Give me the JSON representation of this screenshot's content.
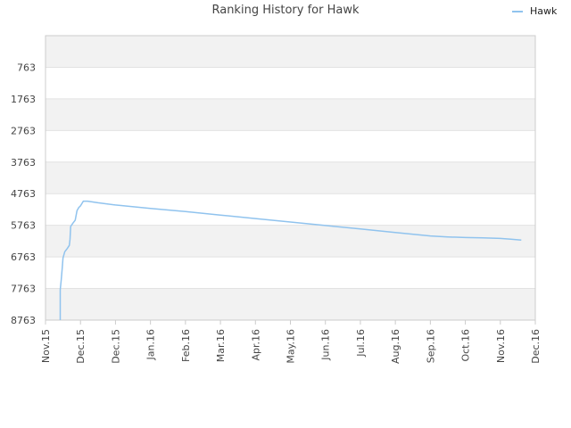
{
  "chart_data": {
    "type": "line",
    "title": "Ranking History for Hawk",
    "xlabel": "",
    "ylabel": "",
    "y_inverted": true,
    "ylim": [
      -237,
      8763
    ],
    "y_ticks": [
      763,
      1763,
      2763,
      3763,
      4763,
      5763,
      6763,
      7763,
      8763
    ],
    "x_ticks": [
      "Nov.15",
      "Dec.15",
      "Dec.15",
      "Jan.16",
      "Feb.16",
      "Mar.16",
      "Apr.16",
      "May.16",
      "Jun.16",
      "Jul.16",
      "Aug.16",
      "Sep.16",
      "Oct.16",
      "Nov.16",
      "Dec.16"
    ],
    "x_tick_positions": [
      0,
      1,
      2,
      3,
      4,
      5,
      6,
      7,
      8,
      9,
      10,
      11,
      12,
      13,
      14
    ],
    "xlim": [
      0,
      14
    ],
    "grid": "horizontal bands",
    "legend_position": "top-right",
    "colors": {
      "line": "#90c3ee",
      "band": "#f2f2f2",
      "grid": "#e2e2e2",
      "axis": "#cccccc"
    },
    "series": [
      {
        "name": "Hawk",
        "points": [
          [
            0.42,
            8763
          ],
          [
            0.42,
            7800
          ],
          [
            0.45,
            7500
          ],
          [
            0.48,
            7100
          ],
          [
            0.5,
            6800
          ],
          [
            0.55,
            6600
          ],
          [
            0.62,
            6500
          ],
          [
            0.68,
            6400
          ],
          [
            0.7,
            6200
          ],
          [
            0.72,
            5800
          ],
          [
            0.78,
            5700
          ],
          [
            0.85,
            5600
          ],
          [
            0.9,
            5300
          ],
          [
            0.95,
            5200
          ],
          [
            1.0,
            5150
          ],
          [
            1.08,
            5000
          ],
          [
            1.2,
            5000
          ],
          [
            1.5,
            5050
          ],
          [
            2.0,
            5120
          ],
          [
            3.0,
            5230
          ],
          [
            4.0,
            5330
          ],
          [
            5.0,
            5440
          ],
          [
            6.0,
            5550
          ],
          [
            7.0,
            5660
          ],
          [
            8.0,
            5770
          ],
          [
            9.0,
            5880
          ],
          [
            10.0,
            5990
          ],
          [
            11.0,
            6100
          ],
          [
            11.5,
            6130
          ],
          [
            12.0,
            6150
          ],
          [
            12.5,
            6160
          ],
          [
            13.0,
            6180
          ],
          [
            13.3,
            6200
          ],
          [
            13.6,
            6230
          ]
        ]
      }
    ]
  }
}
